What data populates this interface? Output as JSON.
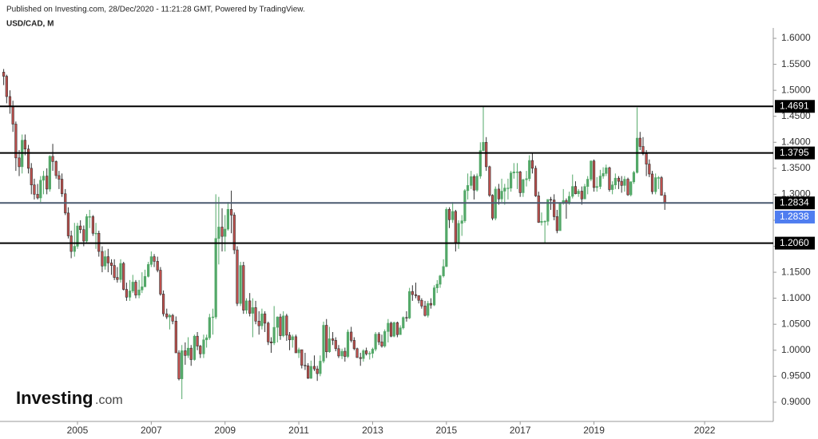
{
  "header": {
    "published": "Published on Investing.com, 28/Dec/2020 - 11:21:28 GMT, Powered by TradingView.",
    "symbol": "USD/CAD, M"
  },
  "logo": {
    "name": "Investing",
    "suffix": ".com"
  },
  "chart_data": {
    "type": "candlestick",
    "up_color": "#53a868",
    "down_color": "#c0504d",
    "outline_color": "#333333",
    "xlim": [
      2002.9,
      2023.86
    ],
    "xticks": [
      2005,
      2007,
      2009,
      2011,
      2013,
      2015,
      2017,
      2019,
      2022
    ],
    "ylim": [
      0.863,
      1.62
    ],
    "yticks": [
      {
        "value": 0.9,
        "label": "0.9000"
      },
      {
        "value": 0.95,
        "label": "0.9500"
      },
      {
        "value": 1.0,
        "label": "1.0000"
      },
      {
        "value": 1.05,
        "label": "1.0500"
      },
      {
        "value": 1.1,
        "label": "1.1000"
      },
      {
        "value": 1.15,
        "label": "1.1500"
      },
      {
        "value": 1.2,
        "label": "1.2000"
      },
      {
        "value": 1.25,
        "label": "1.2500"
      },
      {
        "value": 1.3,
        "label": "1.3000"
      },
      {
        "value": 1.35,
        "label": "1.3500"
      },
      {
        "value": 1.4,
        "label": "1.4000"
      },
      {
        "value": 1.45,
        "label": "1.4500"
      },
      {
        "value": 1.5,
        "label": "1.5000"
      },
      {
        "value": 1.55,
        "label": "1.5500"
      },
      {
        "value": 1.6,
        "label": "1.6000"
      }
    ],
    "levels": [
      {
        "value": 1.4691,
        "color": "#000000"
      },
      {
        "value": 1.3795,
        "color": "#000000"
      },
      {
        "value": 1.2834,
        "color": "#4a5a70"
      },
      {
        "value": {
          "value": 1.206,
          "label": "1.2060"
        },
        "color": "#000000"
      }
    ],
    "last_price": {
      "value": 1.2838,
      "color": "#4f7df0"
    },
    "x": [
      2003.0,
      2003.08,
      2003.17,
      2003.25,
      2003.33,
      2003.42,
      2003.5,
      2003.58,
      2003.67,
      2003.75,
      2003.83,
      2003.92,
      2004.0,
      2004.08,
      2004.17,
      2004.25,
      2004.33,
      2004.42,
      2004.5,
      2004.58,
      2004.67,
      2004.75,
      2004.83,
      2004.92,
      2005.0,
      2005.08,
      2005.17,
      2005.25,
      2005.33,
      2005.42,
      2005.5,
      2005.58,
      2005.67,
      2005.75,
      2005.83,
      2005.92,
      2006.0,
      2006.08,
      2006.17,
      2006.25,
      2006.33,
      2006.42,
      2006.5,
      2006.58,
      2006.67,
      2006.75,
      2006.83,
      2006.92,
      2007.0,
      2007.08,
      2007.17,
      2007.25,
      2007.33,
      2007.42,
      2007.5,
      2007.58,
      2007.67,
      2007.75,
      2007.83,
      2007.92,
      2008.0,
      2008.08,
      2008.17,
      2008.25,
      2008.33,
      2008.42,
      2008.5,
      2008.58,
      2008.67,
      2008.75,
      2008.83,
      2008.92,
      2009.0,
      2009.08,
      2009.17,
      2009.25,
      2009.33,
      2009.42,
      2009.5,
      2009.58,
      2009.67,
      2009.75,
      2009.83,
      2009.92,
      2010.0,
      2010.08,
      2010.17,
      2010.25,
      2010.33,
      2010.42,
      2010.5,
      2010.58,
      2010.67,
      2010.75,
      2010.83,
      2010.92,
      2011.0,
      2011.08,
      2011.17,
      2011.25,
      2011.33,
      2011.42,
      2011.5,
      2011.58,
      2011.67,
      2011.75,
      2011.83,
      2011.92,
      2012.0,
      2012.08,
      2012.17,
      2012.25,
      2012.33,
      2012.42,
      2012.5,
      2012.58,
      2012.67,
      2012.75,
      2012.83,
      2012.92,
      2013.0,
      2013.08,
      2013.17,
      2013.25,
      2013.33,
      2013.42,
      2013.5,
      2013.58,
      2013.67,
      2013.75,
      2013.83,
      2013.92,
      2014.0,
      2014.08,
      2014.17,
      2014.25,
      2014.33,
      2014.42,
      2014.5,
      2014.58,
      2014.67,
      2014.75,
      2014.83,
      2014.92,
      2015.0,
      2015.08,
      2015.17,
      2015.25,
      2015.33,
      2015.42,
      2015.5,
      2015.58,
      2015.67,
      2015.75,
      2015.83,
      2015.92,
      2016.0,
      2016.08,
      2016.17,
      2016.25,
      2016.33,
      2016.42,
      2016.5,
      2016.58,
      2016.67,
      2016.75,
      2016.83,
      2016.92,
      2017.0,
      2017.08,
      2017.17,
      2017.25,
      2017.33,
      2017.42,
      2017.5,
      2017.58,
      2017.67,
      2017.75,
      2017.83,
      2017.92,
      2018.0,
      2018.08,
      2018.17,
      2018.25,
      2018.33,
      2018.42,
      2018.5,
      2018.58,
      2018.67,
      2018.75,
      2018.83,
      2018.92,
      2019.0,
      2019.08,
      2019.17,
      2019.25,
      2019.33,
      2019.42,
      2019.5,
      2019.58,
      2019.67,
      2019.75,
      2019.83,
      2019.92,
      2020.0,
      2020.08,
      2020.17,
      2020.25,
      2020.33,
      2020.42,
      2020.5,
      2020.58,
      2020.67,
      2020.75,
      2020.83,
      2020.92
    ],
    "open": [
      1.535,
      1.527,
      1.488,
      1.469,
      1.435,
      1.37,
      1.353,
      1.404,
      1.387,
      1.35,
      1.318,
      1.3,
      1.293,
      1.327,
      1.335,
      1.31,
      1.373,
      1.363,
      1.336,
      1.329,
      1.301,
      1.264,
      1.22,
      1.19,
      1.2,
      1.239,
      1.232,
      1.21,
      1.257,
      1.257,
      1.225,
      1.225,
      1.19,
      1.162,
      1.18,
      1.168,
      1.163,
      1.14,
      1.136,
      1.167,
      1.117,
      1.102,
      1.114,
      1.131,
      1.106,
      1.116,
      1.122,
      1.142,
      1.165,
      1.18,
      1.171,
      1.154,
      1.108,
      1.07,
      1.064,
      1.067,
      1.056,
      0.995,
      0.945,
      0.999,
      0.99,
      1.004,
      0.982,
      1.027,
      1.008,
      0.993,
      1.02,
      1.024,
      1.063,
      1.064,
      1.215,
      1.237,
      1.219,
      1.233,
      1.271,
      1.26,
      1.193,
      1.09,
      1.163,
      1.077,
      1.095,
      1.071,
      1.082,
      1.056,
      1.047,
      1.07,
      1.052,
      1.016,
      1.014,
      1.044,
      1.064,
      1.028,
      1.066,
      1.029,
      1.02,
      1.026,
      0.995,
      1.001,
      0.971,
      0.97,
      0.946,
      0.969,
      0.964,
      0.955,
      0.979,
      1.048,
      0.997,
      1.022,
      1.019,
      1.003,
      0.989,
      0.998,
      0.988,
      1.035,
      1.019,
      1.003,
      0.986,
      0.984,
      0.999,
      0.993,
      0.994,
      1.002,
      1.031,
      1.016,
      1.008,
      1.036,
      1.052,
      1.027,
      1.053,
      1.03,
      1.043,
      1.063,
      1.062,
      1.113,
      1.107,
      1.105,
      1.096,
      1.085,
      1.067,
      1.09,
      1.087,
      1.12,
      1.127,
      1.143,
      1.161,
      1.271,
      1.251,
      1.267,
      1.207,
      1.244,
      1.249,
      1.307,
      1.317,
      1.334,
      1.308,
      1.335,
      1.384,
      1.4,
      1.353,
      1.298,
      1.254,
      1.31,
      1.291,
      1.306,
      1.312,
      1.312,
      1.341,
      1.343,
      1.343,
      1.303,
      1.328,
      1.33,
      1.365,
      1.35,
      1.297,
      1.246,
      1.248,
      1.248,
      1.29,
      1.289,
      1.257,
      1.23,
      1.284,
      1.288,
      1.284,
      1.296,
      1.315,
      1.301,
      1.306,
      1.291,
      1.315,
      1.329,
      1.364,
      1.313,
      1.315,
      1.335,
      1.34,
      1.351,
      1.309,
      1.318,
      1.331,
      1.325,
      1.317,
      1.329,
      1.299,
      1.324,
      1.342,
      1.408,
      1.392,
      1.378,
      1.358,
      1.339,
      1.305,
      1.332,
      1.332,
      1.298
    ],
    "high": [
      1.541,
      1.53,
      1.5,
      1.48,
      1.44,
      1.385,
      1.415,
      1.415,
      1.395,
      1.36,
      1.33,
      1.32,
      1.335,
      1.345,
      1.35,
      1.375,
      1.397,
      1.365,
      1.345,
      1.34,
      1.31,
      1.275,
      1.23,
      1.245,
      1.245,
      1.25,
      1.24,
      1.262,
      1.27,
      1.26,
      1.245,
      1.23,
      1.2,
      1.192,
      1.195,
      1.175,
      1.175,
      1.16,
      1.175,
      1.17,
      1.13,
      1.135,
      1.145,
      1.135,
      1.135,
      1.15,
      1.155,
      1.17,
      1.19,
      1.185,
      1.18,
      1.16,
      1.115,
      1.08,
      1.07,
      1.07,
      1.065,
      1.0,
      1.01,
      1.015,
      1.025,
      1.01,
      1.03,
      1.035,
      1.01,
      1.03,
      1.03,
      1.07,
      1.08,
      1.3,
      1.295,
      1.273,
      1.26,
      1.285,
      1.307,
      1.265,
      1.2,
      1.17,
      1.17,
      1.1,
      1.11,
      1.1,
      1.095,
      1.075,
      1.08,
      1.075,
      1.055,
      1.025,
      1.085,
      1.065,
      1.07,
      1.075,
      1.07,
      1.035,
      1.03,
      1.03,
      1.005,
      1.0,
      0.995,
      0.975,
      0.98,
      0.99,
      0.97,
      0.99,
      1.055,
      1.06,
      1.045,
      1.035,
      1.025,
      1.01,
      1.003,
      1.005,
      1.04,
      1.045,
      1.025,
      1.005,
      0.995,
      1.002,
      1.005,
      0.998,
      1.005,
      1.035,
      1.035,
      1.03,
      1.04,
      1.06,
      1.055,
      1.055,
      1.055,
      1.048,
      1.065,
      1.075,
      1.12,
      1.125,
      1.13,
      1.105,
      1.1,
      1.095,
      1.095,
      1.1,
      1.125,
      1.135,
      1.145,
      1.175,
      1.275,
      1.275,
      1.285,
      1.27,
      1.25,
      1.26,
      1.31,
      1.34,
      1.345,
      1.338,
      1.34,
      1.4,
      1.469,
      1.41,
      1.355,
      1.3,
      1.315,
      1.32,
      1.33,
      1.32,
      1.33,
      1.345,
      1.36,
      1.36,
      1.345,
      1.33,
      1.345,
      1.375,
      1.379,
      1.355,
      1.305,
      1.265,
      1.25,
      1.29,
      1.295,
      1.3,
      1.27,
      1.285,
      1.31,
      1.292,
      1.305,
      1.338,
      1.325,
      1.31,
      1.315,
      1.32,
      1.335,
      1.365,
      1.367,
      1.333,
      1.347,
      1.352,
      1.357,
      1.353,
      1.325,
      1.34,
      1.335,
      1.335,
      1.335,
      1.332,
      1.325,
      1.345,
      1.467,
      1.42,
      1.41,
      1.385,
      1.367,
      1.345,
      1.34,
      1.335,
      1.335,
      1.304
    ],
    "low": [
      1.51,
      1.475,
      1.455,
      1.42,
      1.345,
      1.335,
      1.34,
      1.375,
      1.34,
      1.3,
      1.29,
      1.29,
      1.285,
      1.3,
      1.3,
      1.305,
      1.345,
      1.33,
      1.31,
      1.295,
      1.26,
      1.215,
      1.177,
      1.18,
      1.195,
      1.225,
      1.2,
      1.205,
      1.235,
      1.22,
      1.195,
      1.18,
      1.15,
      1.155,
      1.15,
      1.145,
      1.135,
      1.13,
      1.13,
      1.115,
      1.095,
      1.095,
      1.11,
      1.1,
      1.1,
      1.11,
      1.125,
      1.14,
      1.16,
      1.16,
      1.15,
      1.105,
      1.065,
      1.06,
      1.04,
      1.05,
      0.995,
      0.942,
      0.906,
      0.972,
      0.985,
      0.97,
      0.98,
      1.0,
      0.985,
      0.985,
      1.005,
      1.02,
      1.03,
      1.06,
      1.165,
      1.19,
      1.19,
      1.23,
      1.225,
      1.185,
      1.085,
      1.085,
      1.07,
      1.07,
      1.065,
      1.025,
      1.05,
      1.03,
      1.04,
      1.035,
      1.01,
      0.995,
      1.01,
      1.015,
      1.02,
      1.025,
      1.018,
      1.0,
      1.005,
      0.995,
      0.985,
      0.965,
      0.962,
      0.945,
      0.945,
      0.96,
      0.941,
      0.95,
      0.975,
      0.985,
      0.995,
      1.01,
      0.998,
      0.985,
      0.983,
      0.978,
      0.985,
      1.015,
      1.0,
      0.985,
      0.97,
      0.978,
      0.99,
      0.982,
      0.985,
      0.998,
      1.01,
      1.005,
      1.005,
      1.015,
      1.025,
      1.025,
      1.025,
      1.03,
      1.04,
      1.055,
      1.06,
      1.095,
      1.1,
      1.09,
      1.08,
      1.065,
      1.063,
      1.08,
      1.085,
      1.11,
      1.12,
      1.14,
      1.16,
      1.235,
      1.245,
      1.19,
      1.195,
      1.22,
      1.245,
      1.29,
      1.31,
      1.29,
      1.305,
      1.33,
      1.383,
      1.345,
      1.295,
      1.25,
      1.25,
      1.28,
      1.285,
      1.28,
      1.29,
      1.305,
      1.33,
      1.31,
      1.295,
      1.295,
      1.315,
      1.325,
      1.34,
      1.295,
      1.245,
      1.24,
      1.206,
      1.24,
      1.27,
      1.25,
      1.225,
      1.23,
      1.28,
      1.253,
      1.28,
      1.292,
      1.3,
      1.295,
      1.28,
      1.292,
      1.3,
      1.325,
      1.305,
      1.305,
      1.31,
      1.33,
      1.335,
      1.305,
      1.3,
      1.31,
      1.31,
      1.303,
      1.305,
      1.297,
      1.296,
      1.32,
      1.34,
      1.385,
      1.375,
      1.335,
      1.333,
      1.3,
      1.3,
      1.31,
      1.298,
      1.27
    ],
    "close": [
      1.527,
      1.488,
      1.469,
      1.435,
      1.37,
      1.353,
      1.404,
      1.387,
      1.35,
      1.318,
      1.3,
      1.293,
      1.327,
      1.335,
      1.31,
      1.373,
      1.363,
      1.336,
      1.329,
      1.301,
      1.264,
      1.22,
      1.19,
      1.2,
      1.239,
      1.232,
      1.21,
      1.257,
      1.257,
      1.225,
      1.225,
      1.19,
      1.162,
      1.18,
      1.168,
      1.163,
      1.14,
      1.136,
      1.167,
      1.117,
      1.102,
      1.114,
      1.131,
      1.106,
      1.116,
      1.122,
      1.142,
      1.165,
      1.18,
      1.171,
      1.154,
      1.108,
      1.07,
      1.064,
      1.067,
      1.056,
      0.995,
      0.945,
      0.999,
      0.99,
      1.004,
      0.982,
      1.027,
      1.008,
      0.993,
      1.02,
      1.024,
      1.063,
      1.064,
      1.215,
      1.237,
      1.219,
      1.233,
      1.271,
      1.26,
      1.193,
      1.09,
      1.163,
      1.077,
      1.095,
      1.071,
      1.082,
      1.056,
      1.047,
      1.07,
      1.052,
      1.016,
      1.014,
      1.044,
      1.064,
      1.028,
      1.066,
      1.029,
      1.02,
      1.026,
      0.995,
      1.001,
      0.971,
      0.97,
      0.946,
      0.969,
      0.964,
      0.955,
      0.979,
      1.048,
      0.997,
      1.022,
      1.019,
      1.003,
      0.989,
      0.998,
      0.988,
      1.035,
      1.019,
      1.003,
      0.986,
      0.984,
      0.999,
      0.993,
      0.994,
      1.002,
      1.031,
      1.016,
      1.008,
      1.036,
      1.052,
      1.027,
      1.053,
      1.03,
      1.043,
      1.063,
      1.062,
      1.113,
      1.107,
      1.105,
      1.096,
      1.085,
      1.067,
      1.09,
      1.087,
      1.12,
      1.127,
      1.143,
      1.161,
      1.271,
      1.251,
      1.267,
      1.207,
      1.244,
      1.249,
      1.307,
      1.317,
      1.334,
      1.308,
      1.335,
      1.384,
      1.4,
      1.353,
      1.298,
      1.254,
      1.31,
      1.291,
      1.306,
      1.312,
      1.312,
      1.341,
      1.343,
      1.343,
      1.303,
      1.328,
      1.33,
      1.365,
      1.35,
      1.297,
      1.246,
      1.248,
      1.248,
      1.29,
      1.289,
      1.257,
      1.23,
      1.284,
      1.288,
      1.284,
      1.296,
      1.315,
      1.301,
      1.306,
      1.291,
      1.315,
      1.329,
      1.364,
      1.313,
      1.315,
      1.335,
      1.34,
      1.351,
      1.309,
      1.318,
      1.331,
      1.325,
      1.317,
      1.329,
      1.299,
      1.324,
      1.342,
      1.408,
      1.392,
      1.378,
      1.358,
      1.339,
      1.305,
      1.332,
      1.332,
      1.298,
      1.2838
    ]
  }
}
